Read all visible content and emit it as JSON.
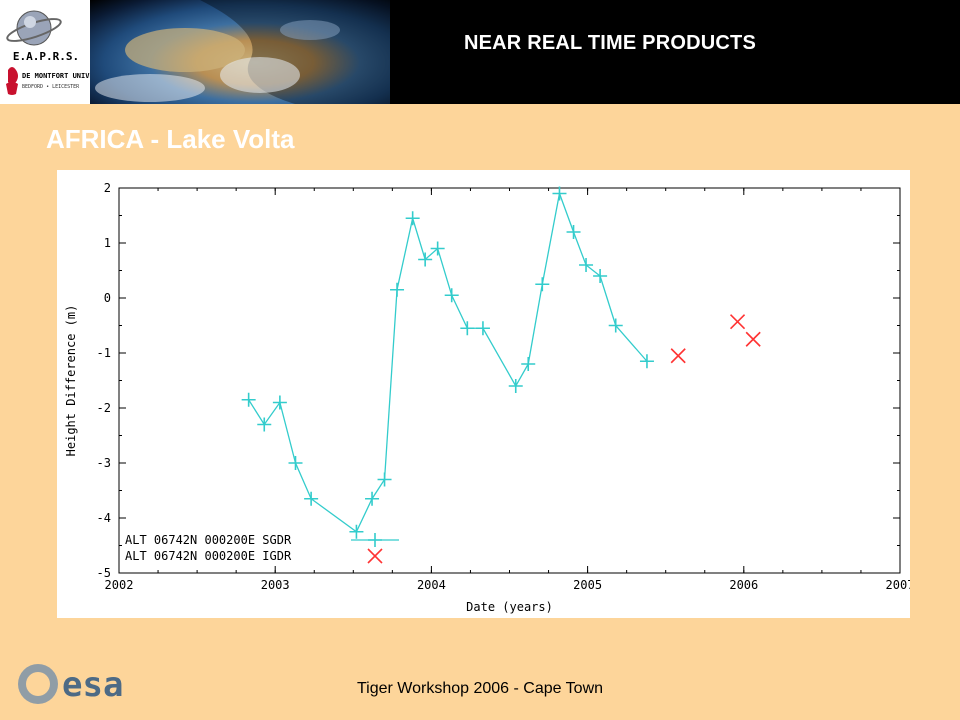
{
  "header": {
    "title": "NEAR REAL TIME PRODUCTS",
    "logos": [
      "saturn-icon",
      "eaprs-logo",
      "de-montfort-university-logo"
    ],
    "eaprs_text": "E.A.P.R.S.",
    "university_name": "DE MONTFORT UNIVERSITY",
    "university_sub": "BEDFORD • LEICESTER"
  },
  "slide": {
    "title": "AFRICA  - Lake Volta"
  },
  "footer": {
    "text": "Tiger Workshop 2006 - Cape Town",
    "esa_logo": "esa"
  },
  "colors": {
    "background": "#fdd59a",
    "header": "#000000",
    "sgdr": "#33cccc",
    "igdr": "#ff3333"
  },
  "chart_data": {
    "type": "line",
    "xlabel": "Date (years)",
    "ylabel": "Height Difference (m)",
    "xlim": [
      2002,
      2007
    ],
    "ylim": [
      -5,
      2
    ],
    "xticks": [
      "2002",
      "2003",
      "2004",
      "2005",
      "2006",
      "2007"
    ],
    "yticks": [
      "2",
      "1",
      "0",
      "-1",
      "-2",
      "-3",
      "-4",
      "-5"
    ],
    "legend_position": "bottom-left",
    "series": [
      {
        "name": "ALT 06742N 000200E SGDR",
        "marker": "plus",
        "line": true,
        "color": "#33cccc",
        "x": [
          2002.83,
          2002.93,
          2003.03,
          2003.13,
          2003.23,
          2003.52,
          2003.62,
          2003.7,
          2003.78,
          2003.88,
          2003.96,
          2004.04,
          2004.13,
          2004.23,
          2004.33,
          2004.54,
          2004.62,
          2004.71,
          2004.82,
          2004.91,
          2004.99,
          2005.08,
          2005.18,
          2005.38
        ],
        "y": [
          -1.85,
          -2.3,
          -1.9,
          -3.0,
          -3.65,
          -4.25,
          -3.65,
          -3.3,
          0.15,
          1.45,
          0.7,
          0.9,
          0.05,
          -0.55,
          -0.55,
          -1.6,
          -1.2,
          0.25,
          1.9,
          1.2,
          0.6,
          0.4,
          -0.5,
          -1.15
        ]
      },
      {
        "name": "ALT 06742N 000200E IGDR",
        "marker": "x",
        "line": false,
        "color": "#ff3333",
        "x": [
          2005.58,
          2005.96,
          2006.06
        ],
        "y": [
          -1.05,
          -0.43,
          -0.75
        ]
      }
    ]
  }
}
